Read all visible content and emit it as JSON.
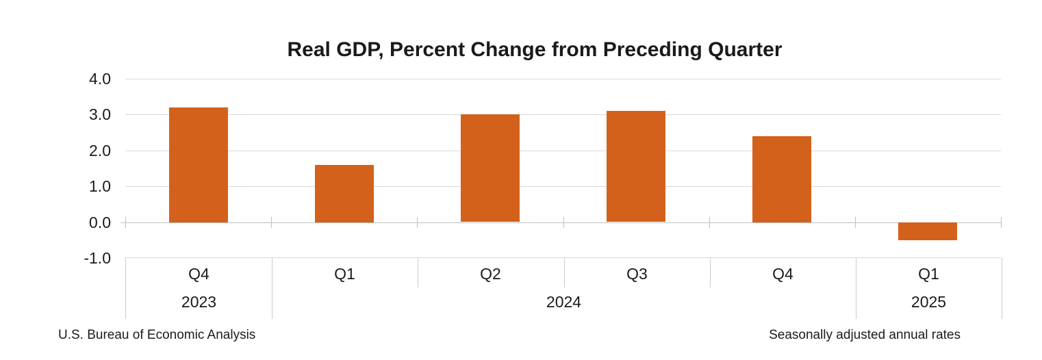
{
  "title": "Real GDP, Percent Change from Preceding Quarter",
  "footer": {
    "left": "U.S. Bureau of Economic Analysis",
    "right": "Seasonally adjusted annual rates"
  },
  "colors": {
    "bar": "#d4611b",
    "gridline": "#d9d9d9",
    "zero_line": "#bfbfbf",
    "table_line": "#c9c9c9",
    "text": "#1a1a1a",
    "background": "#ffffff"
  },
  "chart_data": {
    "type": "bar",
    "title": "Real GDP, Percent Change from Preceding Quarter",
    "categories": [
      "Q4",
      "Q1",
      "Q2",
      "Q3",
      "Q4",
      "Q1"
    ],
    "year_groups": [
      {
        "label": "2023",
        "span": 1
      },
      {
        "label": "2024",
        "span": 4
      },
      {
        "label": "2025",
        "span": 1
      }
    ],
    "values": [
      3.2,
      1.6,
      3.0,
      3.1,
      2.4,
      -0.5
    ],
    "y_ticks": [
      4.0,
      3.0,
      2.0,
      1.0,
      0.0,
      -1.0
    ],
    "y_tick_labels": [
      "4.0",
      "3.0",
      "2.0",
      "1.0",
      "0.0",
      "-1.0"
    ],
    "ylim": [
      -1.0,
      4.0
    ],
    "xlabel": "",
    "ylabel": "",
    "grid": true,
    "legend": false,
    "bar_color": "#d4611b",
    "source_note": "U.S. Bureau of Economic Analysis",
    "unit_note": "Seasonally adjusted annual rates"
  }
}
